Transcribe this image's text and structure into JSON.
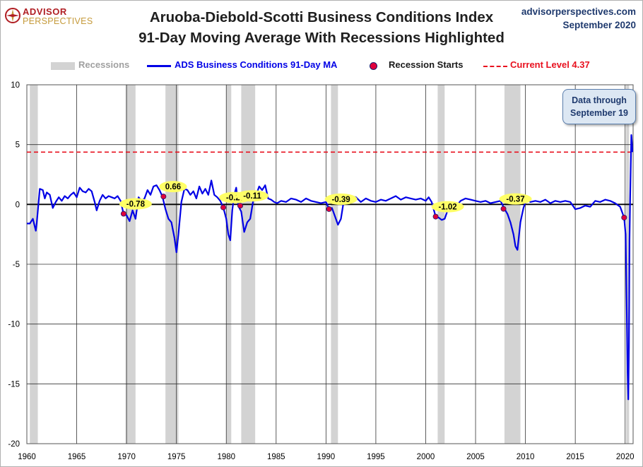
{
  "header": {
    "title_line1": "Aruoba-Diebold-Scotti Business Conditions Index",
    "title_line2": "91-Day Moving Average With Recessions Highlighted",
    "site": "advisorperspectives.com",
    "date": "September 2020",
    "logo_line1": "ADVISOR",
    "logo_line2": "PERSPECTIVES"
  },
  "legend": {
    "recessions": "Recessions",
    "series": "ADS Business Conditions 91-Day MA",
    "recession_starts": "Recession Starts",
    "current_level": "Current Level 4.37"
  },
  "callout": {
    "line1": "Data through",
    "line2": "September 19"
  },
  "colors": {
    "series": "#0000e6",
    "recession": "#d3d3d3",
    "current_level": "#e8101e",
    "marker": "#e0003c",
    "label_bg": "#ffff66"
  },
  "chart_data": {
    "type": "line",
    "title": "Aruoba-Diebold-Scotti Business Conditions Index 91-Day Moving Average With Recessions Highlighted",
    "xlim": [
      1960,
      2020.8
    ],
    "ylim": [
      -20,
      10
    ],
    "x_ticks": [
      1960,
      1965,
      1970,
      1975,
      1980,
      1985,
      1990,
      1995,
      2000,
      2005,
      2010,
      2015,
      2020
    ],
    "y_ticks": [
      10,
      5,
      0,
      -5,
      -10,
      -15,
      -20
    ],
    "grid": true,
    "legend_position": "top",
    "current_level": 4.37,
    "recessions": [
      [
        1960.3,
        1961.1
      ],
      [
        1969.9,
        1970.9
      ],
      [
        1973.9,
        1975.2
      ],
      [
        1980.0,
        1980.5
      ],
      [
        1981.5,
        1982.9
      ],
      [
        1990.5,
        1991.2
      ],
      [
        2001.2,
        2001.9
      ],
      [
        2007.9,
        2009.5
      ],
      [
        2020.1,
        2020.4
      ]
    ],
    "recession_starts": [
      {
        "x": 1969.7,
        "y": -0.78,
        "label": "-0.78"
      },
      {
        "x": 1973.7,
        "y": 0.66,
        "label": "0.66"
      },
      {
        "x": 1979.7,
        "y": -0.25,
        "label": "-0.25"
      },
      {
        "x": 1981.4,
        "y": -0.11,
        "label": "-0.11"
      },
      {
        "x": 1990.3,
        "y": -0.39,
        "label": "-0.39"
      },
      {
        "x": 2001.0,
        "y": -1.02,
        "label": "-1.02"
      },
      {
        "x": 2007.8,
        "y": -0.37,
        "label": "-0.37"
      },
      {
        "x": 2019.9,
        "y": -1.1,
        "label": ""
      }
    ],
    "series": [
      {
        "name": "ADS Business Conditions 91-Day MA",
        "x": [
          1960.0,
          1960.3,
          1960.6,
          1960.9,
          1961.0,
          1961.3,
          1961.6,
          1961.8,
          1962.0,
          1962.3,
          1962.6,
          1962.9,
          1963.2,
          1963.5,
          1963.8,
          1964.1,
          1964.4,
          1964.7,
          1965.0,
          1965.3,
          1965.6,
          1965.9,
          1966.2,
          1966.5,
          1966.8,
          1967.0,
          1967.3,
          1967.6,
          1967.9,
          1968.2,
          1968.5,
          1968.8,
          1969.1,
          1969.4,
          1969.7,
          1970.0,
          1970.3,
          1970.6,
          1970.9,
          1971.2,
          1971.5,
          1971.8,
          1972.1,
          1972.4,
          1972.7,
          1973.0,
          1973.3,
          1973.6,
          1973.9,
          1974.2,
          1974.5,
          1974.8,
          1975.0,
          1975.2,
          1975.5,
          1975.8,
          1976.1,
          1976.4,
          1976.7,
          1977.0,
          1977.3,
          1977.6,
          1977.9,
          1978.2,
          1978.5,
          1978.8,
          1979.1,
          1979.4,
          1979.7,
          1980.0,
          1980.2,
          1980.4,
          1980.6,
          1980.8,
          1981.0,
          1981.2,
          1981.5,
          1981.8,
          1982.1,
          1982.4,
          1982.7,
          1983.0,
          1983.3,
          1983.6,
          1983.9,
          1984.2,
          1984.5,
          1984.8,
          1985.1,
          1985.5,
          1986.0,
          1986.5,
          1987.0,
          1987.5,
          1988.0,
          1988.5,
          1989.0,
          1989.5,
          1990.0,
          1990.3,
          1990.6,
          1990.9,
          1991.2,
          1991.5,
          1991.8,
          1992.1,
          1992.5,
          1993.0,
          1993.5,
          1994.0,
          1994.5,
          1995.0,
          1995.5,
          1996.0,
          1996.5,
          1997.0,
          1997.5,
          1998.0,
          1998.5,
          1999.0,
          1999.5,
          2000.0,
          2000.3,
          2000.6,
          2001.0,
          2001.3,
          2001.6,
          2001.9,
          2002.2,
          2002.5,
          2002.8,
          2003.1,
          2003.5,
          2004.0,
          2004.5,
          2005.0,
          2005.5,
          2006.0,
          2006.5,
          2007.0,
          2007.5,
          2007.9,
          2008.2,
          2008.5,
          2008.8,
          2009.0,
          2009.2,
          2009.5,
          2009.8,
          2010.1,
          2010.5,
          2011.0,
          2011.5,
          2012.0,
          2012.5,
          2013.0,
          2013.5,
          2014.0,
          2014.5,
          2015.0,
          2015.5,
          2016.0,
          2016.5,
          2017.0,
          2017.5,
          2018.0,
          2018.5,
          2019.0,
          2019.5,
          2019.9,
          2020.05,
          2020.15,
          2020.25,
          2020.32,
          2020.38,
          2020.44,
          2020.5,
          2020.56,
          2020.62,
          2020.68,
          2020.72
        ],
        "y": [
          -1.6,
          -1.6,
          -1.2,
          -2.2,
          -1.5,
          1.3,
          1.2,
          0.5,
          1.0,
          0.8,
          -0.3,
          0.2,
          0.6,
          0.3,
          0.7,
          0.5,
          0.8,
          1.0,
          0.6,
          1.4,
          1.1,
          1.0,
          1.3,
          1.1,
          0.2,
          -0.5,
          0.3,
          0.8,
          0.5,
          0.7,
          0.6,
          0.5,
          0.7,
          0.3,
          -0.8,
          -0.9,
          -1.4,
          -0.5,
          -1.2,
          0.6,
          0.3,
          0.5,
          1.2,
          0.8,
          1.5,
          1.6,
          1.2,
          0.66,
          -0.4,
          -1.2,
          -1.5,
          -2.8,
          -4.0,
          -2.5,
          0.2,
          1.3,
          1.2,
          0.8,
          1.1,
          0.5,
          1.5,
          0.9,
          1.3,
          0.8,
          2.0,
          0.8,
          0.6,
          0.3,
          -0.25,
          -1.2,
          -2.5,
          -3.0,
          -0.5,
          0.8,
          1.4,
          -0.11,
          -0.6,
          -2.3,
          -1.5,
          -1.2,
          0.3,
          0.8,
          1.5,
          1.2,
          1.6,
          0.5,
          0.4,
          0.2,
          0.1,
          0.3,
          0.2,
          0.5,
          0.4,
          0.2,
          0.5,
          0.3,
          0.2,
          0.1,
          0.2,
          -0.39,
          -0.3,
          -1.0,
          -1.7,
          -1.2,
          0.4,
          0.2,
          0.7,
          0.6,
          0.2,
          0.5,
          0.3,
          0.2,
          0.4,
          0.3,
          0.5,
          0.7,
          0.4,
          0.6,
          0.5,
          0.4,
          0.5,
          0.3,
          0.6,
          0.2,
          -1.02,
          -1.1,
          -1.3,
          -1.2,
          -0.5,
          -0.3,
          -0.2,
          -0.1,
          0.3,
          0.5,
          0.4,
          0.3,
          0.2,
          0.3,
          0.1,
          0.2,
          0.3,
          -0.37,
          -0.8,
          -1.5,
          -2.5,
          -3.5,
          -3.8,
          -1.5,
          -0.3,
          0.4,
          0.2,
          0.3,
          0.2,
          0.4,
          0.1,
          0.3,
          0.2,
          0.3,
          0.2,
          -0.4,
          -0.3,
          -0.1,
          -0.2,
          0.3,
          0.2,
          0.4,
          0.3,
          0.1,
          -0.2,
          -1.1,
          -2.5,
          -8.0,
          -14.0,
          -16.3,
          -12.0,
          -3.0,
          0.5,
          3.0,
          5.8,
          5.2,
          4.37
        ]
      }
    ]
  }
}
